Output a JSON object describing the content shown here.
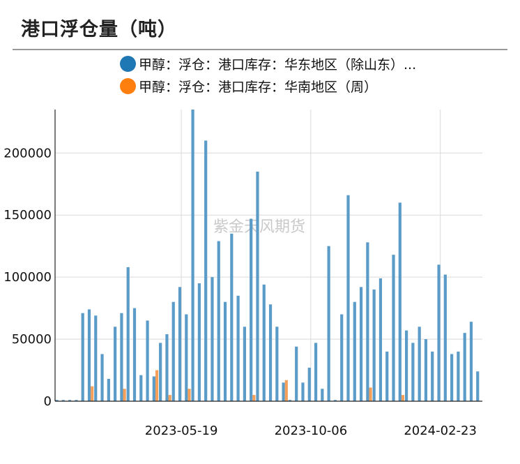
{
  "title": "港口浮仓量（吨）",
  "watermark": "紫金天风期货",
  "legend": [
    {
      "label": "甲醇：浮仓：港口库存：华东地区（除山东）...",
      "color": "#1f77b4"
    },
    {
      "label": "甲醇：浮仓：港口库存：华南地区（周）",
      "color": "#ff7f0e"
    }
  ],
  "chart_data": {
    "type": "bar",
    "ylim": [
      0,
      235000
    ],
    "y_ticks": [
      0,
      50000,
      100000,
      150000,
      200000
    ],
    "x_tick_labels": [
      "2023-05-19",
      "2023-10-06",
      "2024-02-23"
    ],
    "x_tick_index": [
      19,
      39,
      59
    ],
    "grid": true,
    "series": [
      {
        "name": "甲醇：浮仓：港口库存：华东地区（除山东）...",
        "color": "#5b9bc8",
        "values": [
          1000,
          1000,
          1000,
          1000,
          71000,
          74000,
          69000,
          38000,
          18000,
          60000,
          71000,
          108000,
          75000,
          21000,
          65000,
          20000,
          47000,
          54000,
          80000,
          92000,
          70000,
          236000,
          95000,
          210000,
          100000,
          129000,
          80000,
          135000,
          85000,
          60000,
          147000,
          185000,
          94000,
          78000,
          60000,
          15000,
          1000,
          44000,
          15000,
          27000,
          47000,
          10000,
          125000,
          1000,
          70000,
          166000,
          80000,
          92000,
          128000,
          90000,
          99000,
          40000,
          118000,
          160000,
          57000,
          47000,
          60000,
          50000,
          40000,
          110000,
          102000,
          38000,
          40000,
          55000,
          64000,
          24000
        ]
      },
      {
        "name": "甲醇：浮仓：港口库存：华南地区（周）",
        "color": "#f5a05a",
        "values": [
          0,
          0,
          0,
          0,
          0,
          12000,
          0,
          0,
          0,
          0,
          10000,
          0,
          0,
          0,
          0,
          25000,
          0,
          5000,
          0,
          0,
          10000,
          0,
          0,
          0,
          0,
          0,
          0,
          0,
          0,
          0,
          5000,
          0,
          0,
          0,
          0,
          17000,
          0,
          0,
          0,
          0,
          0,
          0,
          0,
          0,
          0,
          0,
          0,
          0,
          11000,
          0,
          0,
          0,
          0,
          5000,
          0,
          0,
          0,
          0,
          0,
          0,
          0,
          0,
          0,
          0,
          0,
          0
        ]
      }
    ]
  }
}
